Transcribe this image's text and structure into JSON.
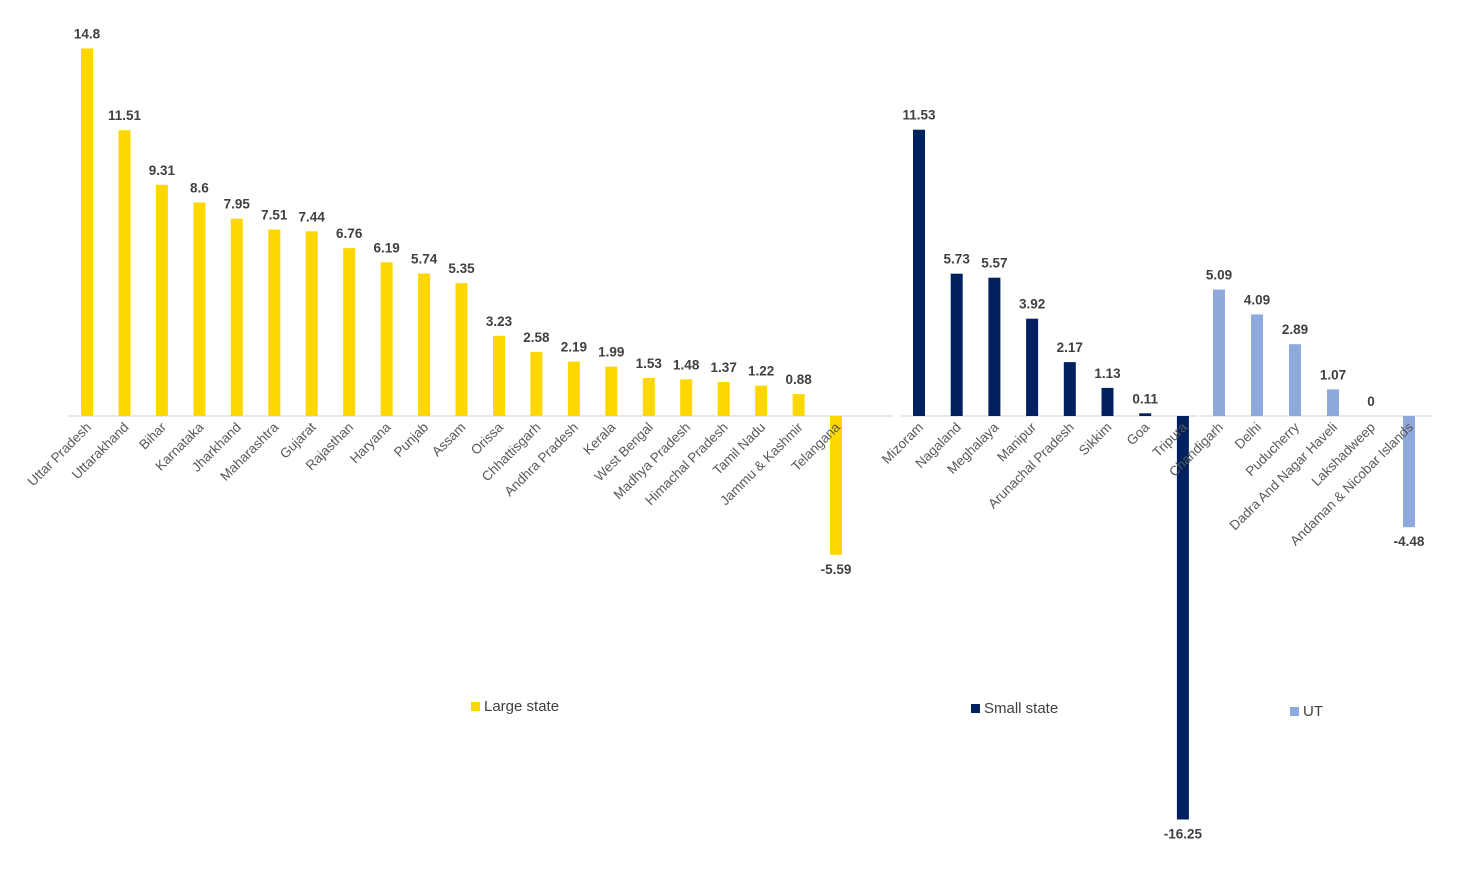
{
  "chart_data": [
    {
      "type": "bar",
      "categories": [
        "Uttar Pradesh",
        "Uttarakhand",
        "Bihar",
        "Karnataka",
        "Jharkhand",
        "Maharashtra",
        "Gujarat",
        "Rajasthan",
        "Haryana",
        "Punjab",
        "Assam",
        "Orissa",
        "Chhattisgarh",
        "Andhra Pradesh",
        "Kerala",
        "West Bengal",
        "Madhya Pradesh",
        "Himachal Pradesh",
        "Tamil Nadu",
        "Jammu & Kashmir",
        "Telangana"
      ],
      "series": [
        {
          "name": "Large state",
          "color": "#FFD700",
          "values": [
            14.8,
            11.51,
            9.31,
            8.6,
            7.95,
            7.51,
            7.44,
            6.76,
            6.19,
            5.74,
            5.35,
            3.23,
            2.58,
            2.19,
            1.99,
            1.53,
            1.48,
            1.37,
            1.22,
            0.88,
            -5.59
          ]
        }
      ],
      "title": "",
      "xlabel": "",
      "ylabel": "",
      "grid": false,
      "legend_position": "bottom"
    },
    {
      "type": "bar",
      "categories": [
        "Mizoram",
        "Nagaland",
        "Meghalaya",
        "Manipur",
        "Arunachal Pradesh",
        "Sikkim",
        "Goa",
        "Tripura"
      ],
      "series": [
        {
          "name": "Small state",
          "color": "#002060",
          "values": [
            11.53,
            5.73,
            5.57,
            3.92,
            2.17,
            1.13,
            0.11,
            -16.25
          ]
        }
      ],
      "title": "",
      "xlabel": "",
      "ylabel": "",
      "grid": false,
      "legend_position": "bottom"
    },
    {
      "type": "bar",
      "categories": [
        "Chandigarh",
        "Delhi",
        "Puducherry",
        "Dadra And Nagar Haveli",
        "Lakshadweep",
        "Andaman & Nicobar Islands"
      ],
      "series": [
        {
          "name": "UT",
          "color": "#8EA9DB",
          "values": [
            5.09,
            4.09,
            2.89,
            1.07,
            0,
            -4.48
          ]
        }
      ],
      "title": "",
      "xlabel": "",
      "ylabel": "",
      "grid": false,
      "legend_position": "bottom"
    }
  ],
  "colors": {
    "axis": "#D9D9D9",
    "data_label": "#404040",
    "tick_label": "#595959"
  }
}
